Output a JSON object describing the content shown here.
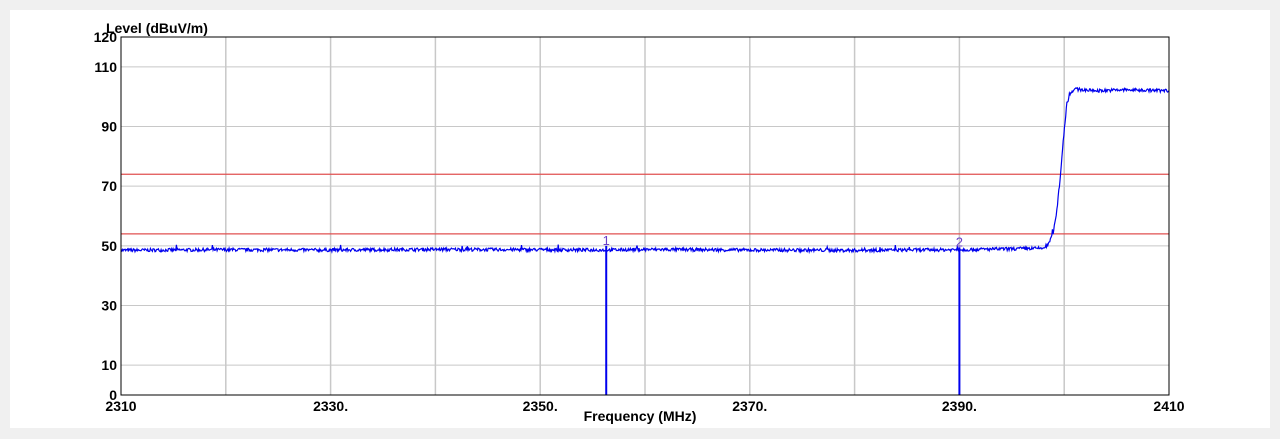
{
  "chart_data": {
    "type": "line",
    "title": "",
    "ylabel": "Level (dBuV/m)",
    "xlabel": "Frequency (MHz)",
    "xlim": [
      2310,
      2410
    ],
    "ylim": [
      0,
      120
    ],
    "x_ticks": [
      2310,
      2320,
      2330,
      2340,
      2350,
      2360,
      2370,
      2380,
      2390,
      2400,
      2410
    ],
    "x_tick_labels": [
      "2310",
      "",
      "2330.",
      "",
      "2350.",
      "",
      "2370.",
      "",
      "2390.",
      "",
      "2410"
    ],
    "y_ticks": [
      0,
      10,
      20,
      30,
      40,
      50,
      60,
      70,
      80,
      90,
      100,
      110,
      120
    ],
    "y_tick_labels": [
      "0",
      "10",
      "",
      "30",
      "",
      "50",
      "",
      "70",
      "",
      "90",
      "",
      "110",
      "120"
    ],
    "grid": true,
    "limit_lines": [
      {
        "value": 74,
        "color": "#e05050"
      },
      {
        "value": 54,
        "color": "#e05050"
      }
    ],
    "series": [
      {
        "color": "#0000ee",
        "x": [
          2310,
          2320,
          2330,
          2340,
          2350,
          2356.3,
          2360,
          2370,
          2380,
          2390,
          2395,
          2398,
          2398.5,
          2399.0,
          2399.3,
          2399.6,
          2399.9,
          2400.2,
          2400.5,
          2401,
          2403,
          2406,
          2410
        ],
        "y": [
          48.5,
          48.7,
          48.6,
          48.8,
          48.7,
          48.6,
          48.8,
          48.6,
          48.5,
          48.7,
          49.0,
          49.2,
          50.5,
          55,
          62,
          72,
          85,
          96,
          101,
          102.5,
          102,
          102.3,
          102
        ]
      }
    ],
    "markers": [
      {
        "label": "1",
        "x": 2356.3,
        "y": 50
      },
      {
        "label": "2",
        "x": 2390.0,
        "y": 49.5
      }
    ]
  }
}
